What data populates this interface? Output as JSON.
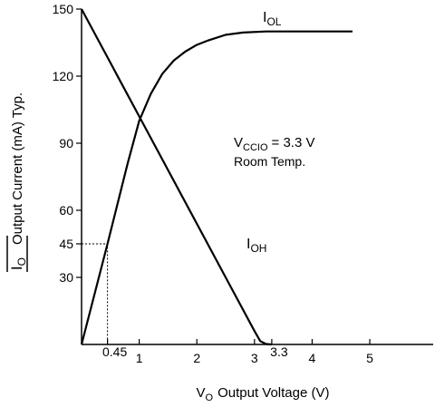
{
  "chart_data": {
    "type": "line",
    "ylabel": "Output Current (mA) Typ.",
    "ylabel_symbol": "I",
    "ylabel_symbol_sub": "O",
    "xlabel_symbol": "V",
    "xlabel_symbol_sub": "O",
    "xlabel": "Output Voltage (V)",
    "annotations": [
      {
        "text": "V",
        "sub": "CCIO",
        "tail": "= 3.3 V"
      },
      {
        "text": "Room Temp."
      }
    ],
    "series": [
      {
        "name": "I",
        "sub": "OL",
        "color": "#000000",
        "x": [
          0,
          0.45,
          0.8,
          1,
          1.2,
          1.4,
          1.6,
          1.8,
          2,
          2.2,
          2.5,
          2.8,
          3.2,
          4,
          4.7
        ],
        "values": [
          0,
          45,
          81,
          100,
          112,
          121,
          127,
          131,
          134,
          136,
          138.5,
          139.5,
          140,
          140,
          140
        ]
      },
      {
        "name": "I",
        "sub": "OH",
        "color": "#000000",
        "x": [
          0,
          1,
          2,
          3,
          3.1,
          3.2,
          3.3
        ],
        "values": [
          150,
          102,
          54,
          6,
          1.5,
          0.2,
          0
        ]
      }
    ],
    "reference": {
      "x": 0.45,
      "y": 45
    },
    "xlim": [
      0,
      6.1
    ],
    "ylim": [
      0,
      150
    ],
    "xticks": [
      0.45,
      1,
      2,
      3,
      3.3,
      4,
      5
    ],
    "yticks": [
      30,
      45,
      60,
      90,
      120,
      150
    ],
    "grid": false
  }
}
